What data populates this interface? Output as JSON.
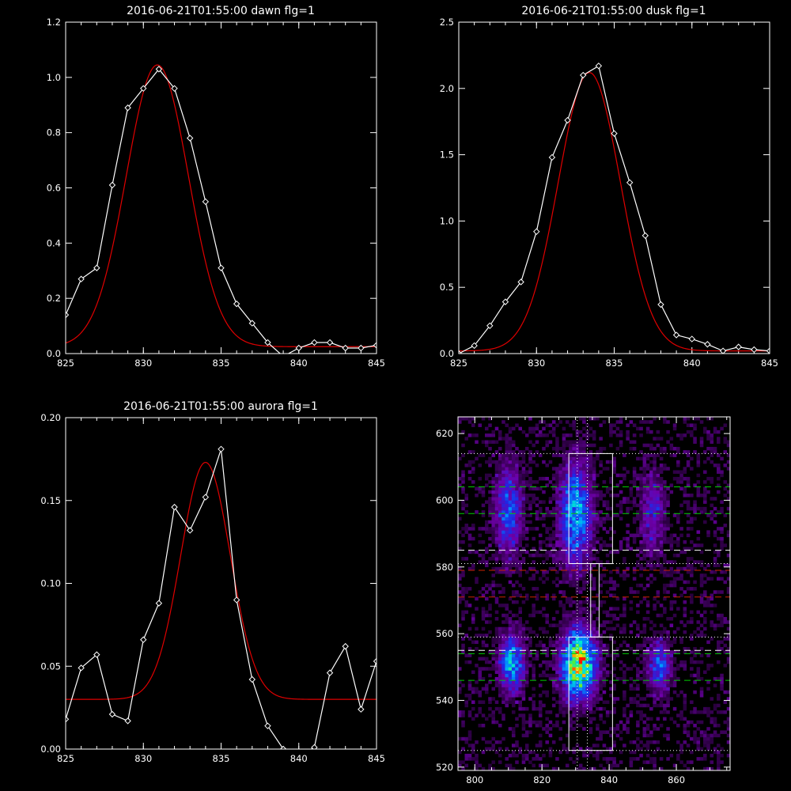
{
  "chart_data": [
    {
      "type": "line",
      "title": "2016-06-21T01:55:00 dawn flg=1",
      "xlim": [
        825,
        845
      ],
      "ylim": [
        0,
        1.2
      ],
      "xticks": [
        "825",
        "830",
        "835",
        "840",
        "845"
      ],
      "yticks": [
        "0.0",
        "0.2",
        "0.4",
        "0.6",
        "0.8",
        "1.0",
        "1.2"
      ],
      "series": [
        {
          "role": "measured",
          "color": "#ffffff",
          "marker": "diamond",
          "x": [
            825,
            826,
            827,
            828,
            829,
            830,
            831,
            832,
            833,
            834,
            835,
            836,
            837,
            838,
            839,
            840,
            841,
            842,
            843,
            844,
            845
          ],
          "y": [
            0.14,
            0.27,
            0.31,
            0.61,
            0.89,
            0.96,
            1.03,
            0.96,
            0.78,
            0.55,
            0.31,
            0.18,
            0.11,
            0.04,
            -0.01,
            0.02,
            0.04,
            0.04,
            0.02,
            0.02,
            0.03
          ]
        },
        {
          "role": "fit",
          "color": "#e00000",
          "gauss": {
            "amp": 1.02,
            "center": 830.9,
            "sigma": 2.0,
            "base": 0.025
          }
        }
      ]
    },
    {
      "type": "line",
      "title": "2016-06-21T01:55:00 dusk flg=1",
      "xlim": [
        825,
        845
      ],
      "ylim": [
        0,
        2.5
      ],
      "xticks": [
        "825",
        "830",
        "835",
        "840",
        "845"
      ],
      "yticks": [
        "0.0",
        "0.5",
        "1.0",
        "1.5",
        "2.0",
        "2.5"
      ],
      "series": [
        {
          "role": "measured",
          "color": "#ffffff",
          "marker": "diamond",
          "x": [
            825,
            826,
            827,
            828,
            829,
            830,
            831,
            832,
            833,
            834,
            835,
            836,
            837,
            838,
            839,
            840,
            841,
            842,
            843,
            844,
            845
          ],
          "y": [
            0.0,
            0.06,
            0.21,
            0.39,
            0.54,
            0.92,
            1.48,
            1.76,
            2.1,
            2.17,
            1.66,
            1.29,
            0.89,
            0.37,
            0.14,
            0.11,
            0.07,
            0.02,
            0.05,
            0.03,
            0.02
          ]
        },
        {
          "role": "fit",
          "color": "#e00000",
          "gauss": {
            "amp": 2.1,
            "center": 833.4,
            "sigma": 2.0,
            "base": 0.02
          }
        }
      ]
    },
    {
      "type": "line",
      "title": "2016-06-21T01:55:00 aurora flg=1",
      "xlim": [
        825,
        845
      ],
      "ylim": [
        0,
        0.2
      ],
      "xticks": [
        "825",
        "830",
        "835",
        "840",
        "845"
      ],
      "yticks": [
        "0.00",
        "0.05",
        "0.10",
        "0.15",
        "0.20"
      ],
      "series": [
        {
          "role": "measured",
          "color": "#ffffff",
          "marker": "diamond",
          "x": [
            825,
            826,
            827,
            828,
            829,
            830,
            831,
            832,
            833,
            834,
            835,
            836,
            837,
            838,
            839,
            840,
            841,
            842,
            843,
            844,
            845
          ],
          "y": [
            0.018,
            0.049,
            0.057,
            0.021,
            0.017,
            0.066,
            0.088,
            0.146,
            0.132,
            0.152,
            0.181,
            0.09,
            0.042,
            0.014,
            0.0,
            -0.004,
            0.001,
            0.046,
            0.062,
            0.024,
            0.053
          ]
        },
        {
          "role": "fit",
          "color": "#e00000",
          "gauss": {
            "amp": 0.143,
            "center": 834.0,
            "sigma": 1.6,
            "base": 0.03
          }
        }
      ]
    },
    {
      "type": "heatmap",
      "xlim": [
        795,
        876
      ],
      "ylim": [
        519,
        625
      ],
      "xticks": [
        "800",
        "820",
        "840",
        "860"
      ],
      "yticks": [
        "520",
        "540",
        "560",
        "580",
        "600",
        "620"
      ],
      "blobs": [
        {
          "cx": 831,
          "cy": 551,
          "rx": 3.2,
          "ry": 6.5,
          "peak": 1.0
        },
        {
          "cx": 811,
          "cy": 551,
          "rx": 2.4,
          "ry": 5.5,
          "peak": 0.55
        },
        {
          "cx": 855,
          "cy": 550,
          "rx": 2.2,
          "ry": 5.0,
          "peak": 0.4
        },
        {
          "cx": 830,
          "cy": 596,
          "rx": 3.0,
          "ry": 10.0,
          "peak": 0.55
        },
        {
          "cx": 810,
          "cy": 597,
          "rx": 2.6,
          "ry": 9.0,
          "peak": 0.38
        },
        {
          "cx": 853,
          "cy": 596,
          "rx": 2.4,
          "ry": 8.0,
          "peak": 0.26
        }
      ],
      "background_level": 0.07,
      "hlines": [
        {
          "y": 604,
          "color": "#00cc00",
          "style": "dashed"
        },
        {
          "y": 596,
          "color": "#00cc00",
          "style": "dashed"
        },
        {
          "y": 585,
          "color": "#ffffff",
          "style": "dashed"
        },
        {
          "y": 579,
          "color": "#cc2200",
          "style": "dashed"
        },
        {
          "y": 571,
          "color": "#cc2200",
          "style": "dashed"
        },
        {
          "y": 555,
          "color": "#ffffff",
          "style": "dashed"
        },
        {
          "y": 554,
          "color": "#00cc00",
          "style": "dashed"
        },
        {
          "y": 546,
          "color": "#00cc00",
          "style": "dashed"
        },
        {
          "y": 614,
          "color": "#ffffff",
          "style": "dotted"
        },
        {
          "y": 581,
          "color": "#ffffff",
          "style": "dotted"
        },
        {
          "y": 559,
          "color": "#ffffff",
          "style": "dotted"
        },
        {
          "y": 525,
          "color": "#ffffff",
          "style": "dotted"
        }
      ],
      "vlines": [
        {
          "x": 830.5,
          "color": "#ffffff",
          "style": "dotted"
        },
        {
          "x": 833.5,
          "color": "#ffffff",
          "style": "dotted"
        }
      ],
      "boxes": [
        {
          "x0": 828,
          "x1": 841,
          "y0": 581,
          "y1": 614
        },
        {
          "x0": 828,
          "x1": 841,
          "y0": 525,
          "y1": 559
        }
      ],
      "connector": {
        "x0": 834.5,
        "x1": 837,
        "y0": 559,
        "y1": 581
      }
    }
  ]
}
